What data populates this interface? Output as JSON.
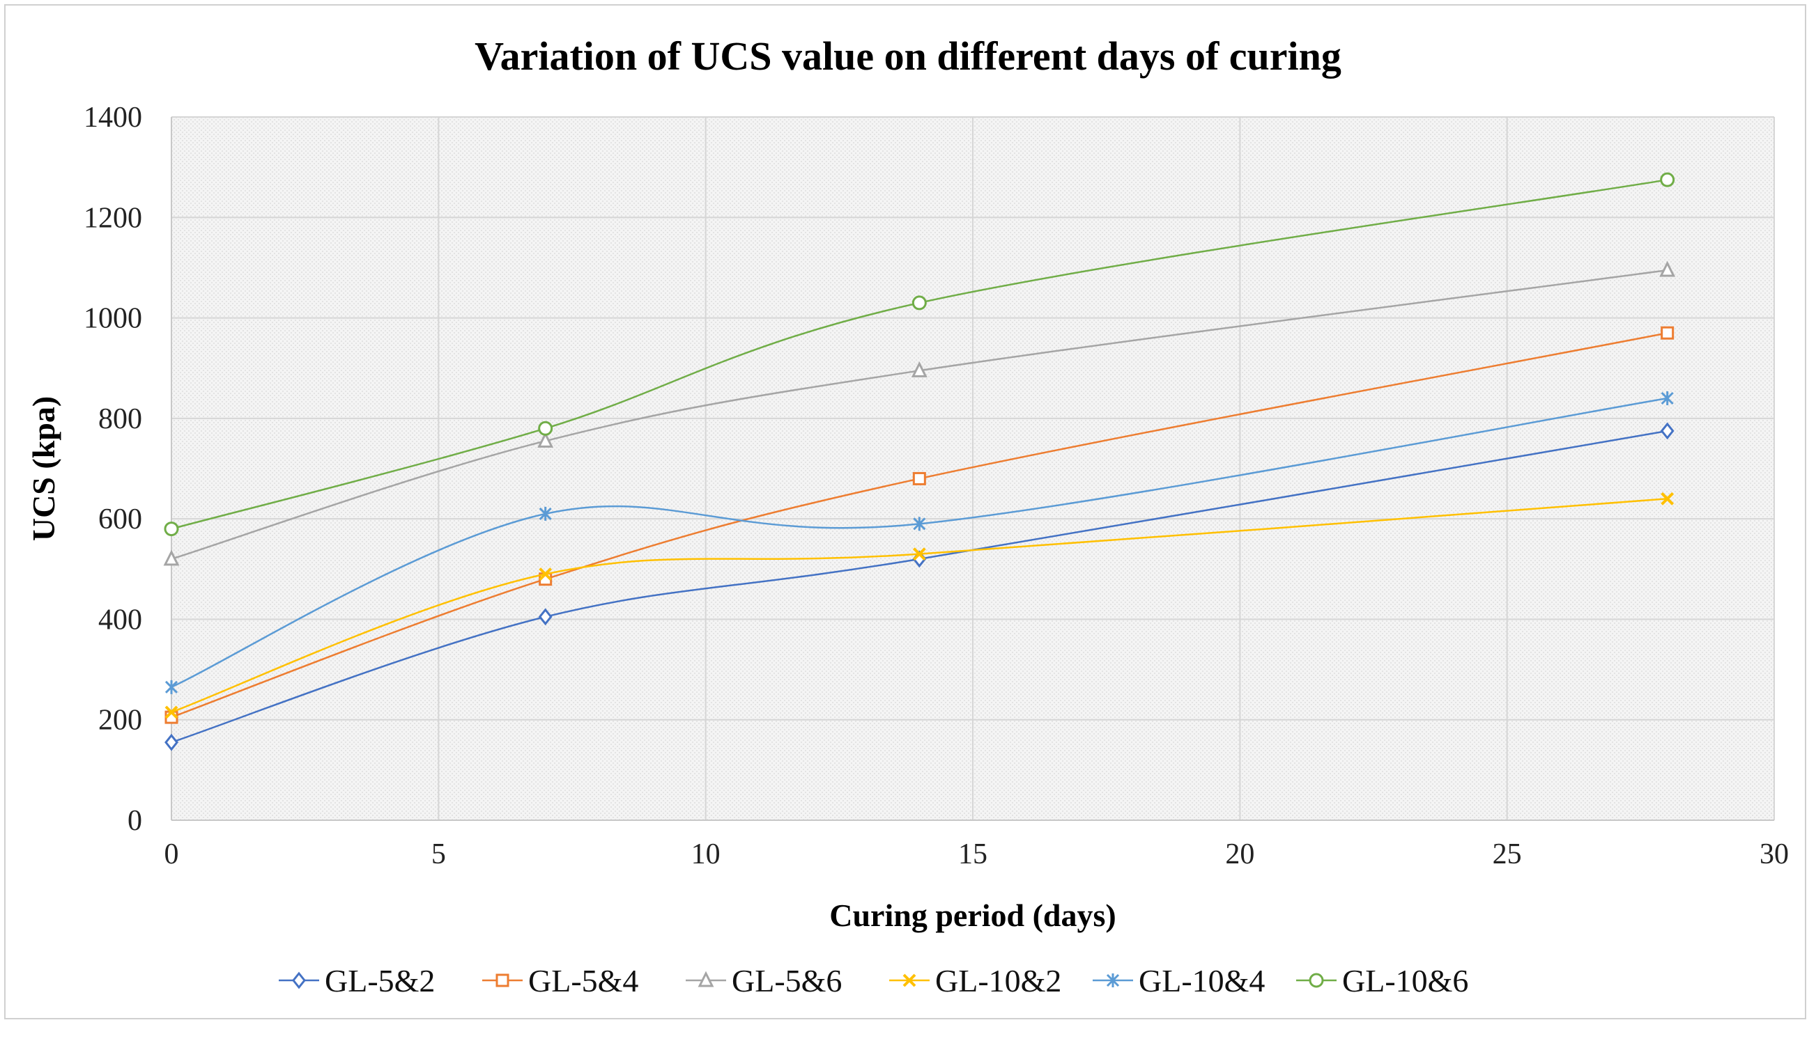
{
  "chart_data": {
    "type": "line",
    "title": "Variation of UCS value on different days of curing",
    "xlabel": "Curing period (days)",
    "ylabel": "UCS (kpa)",
    "xlim": [
      0,
      30
    ],
    "ylim": [
      0,
      1400
    ],
    "xticks": [
      "0",
      "5",
      "10",
      "15",
      "20",
      "25",
      "30"
    ],
    "yticks": [
      "0",
      "200",
      "400",
      "600",
      "800",
      "1000",
      "1200",
      "1400"
    ],
    "grid": true,
    "legend_position": "bottom",
    "x": [
      0,
      7,
      14,
      28
    ],
    "series": [
      {
        "name": "GL-5&2",
        "values": [
          155,
          405,
          520,
          775
        ],
        "color": "#4472C4",
        "marker": "diamond"
      },
      {
        "name": "GL-5&4",
        "values": [
          205,
          480,
          680,
          970
        ],
        "color": "#ED7D31",
        "marker": "square"
      },
      {
        "name": "GL-5&6",
        "values": [
          520,
          755,
          895,
          1095
        ],
        "color": "#A5A5A5",
        "marker": "triangle"
      },
      {
        "name": "GL-10&2",
        "values": [
          215,
          490,
          530,
          640
        ],
        "color": "#FFC000",
        "marker": "x"
      },
      {
        "name": "GL-10&4",
        "values": [
          265,
          610,
          590,
          840
        ],
        "color": "#5B9BD5",
        "marker": "star"
      },
      {
        "name": "GL-10&6",
        "values": [
          580,
          780,
          1030,
          1275
        ],
        "color": "#70AD47",
        "marker": "circle"
      }
    ]
  }
}
